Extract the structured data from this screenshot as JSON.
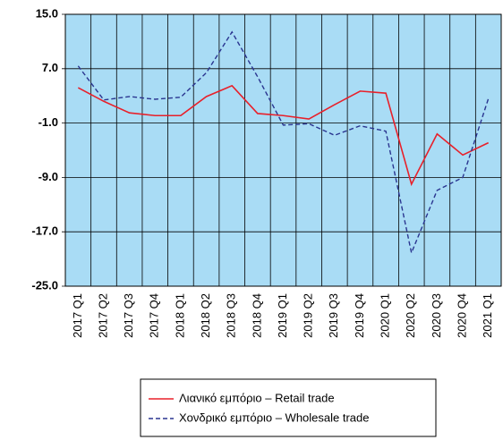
{
  "chart_data": {
    "type": "line",
    "categories": [
      "2017 Q1",
      "2017 Q2",
      "2017 Q3",
      "2017 Q4",
      "2018 Q1",
      "2018 Q2",
      "2018 Q3",
      "2018 Q4",
      "2019 Q1",
      "2019 Q2",
      "2019 Q3",
      "2019 Q4",
      "2020 Q1",
      "2020 Q2",
      "2020 Q3",
      "2020 Q4",
      "2021 Q1"
    ],
    "series": [
      {
        "name": "Λιανικό εμπόριο – Retail trade",
        "color": "#e8202a",
        "dash": false,
        "values": [
          4.2,
          2.2,
          0.5,
          0.1,
          0.1,
          2.9,
          4.5,
          0.4,
          0.1,
          -0.4,
          1.7,
          3.7,
          3.4,
          -10.0,
          -2.6,
          -5.7,
          -3.9
        ]
      },
      {
        "name": "Χονδρικό εμπόριο – Wholesale trade",
        "color": "#2a3590",
        "dash": true,
        "values": [
          7.4,
          2.4,
          2.9,
          2.5,
          2.8,
          6.4,
          12.4,
          5.8,
          -1.3,
          -1.1,
          -2.8,
          -1.4,
          -2.2,
          -20.1,
          -10.9,
          -9.0,
          2.6
        ]
      }
    ],
    "ylim": [
      -25,
      15
    ],
    "yticks": [
      {
        "value": 15,
        "label": "15.0"
      },
      {
        "value": 7,
        "label": "7.0"
      },
      {
        "value": -1,
        "label": "-1.0"
      },
      {
        "value": -9,
        "label": "-9.0"
      },
      {
        "value": -17,
        "label": "-17.0"
      },
      {
        "value": -25,
        "label": "-25.0"
      }
    ],
    "grid": true,
    "background": "#a9dcf5"
  }
}
